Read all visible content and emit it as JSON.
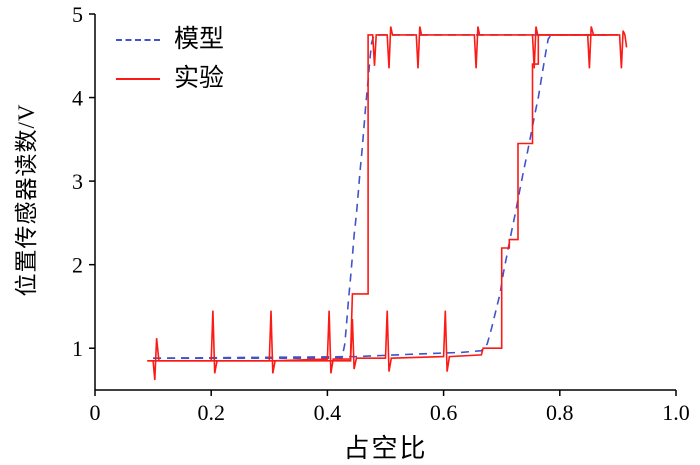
{
  "chart_data": {
    "type": "line",
    "title": "",
    "xlabel": "占空比",
    "ylabel": "位置传感器读数/V",
    "xlim": [
      0,
      1.0
    ],
    "ylim": [
      0.5,
      5
    ],
    "xticks": [
      0,
      0.2,
      0.4,
      0.6,
      0.8,
      1.0
    ],
    "xtick_labels": [
      "0",
      "0.2",
      "0.4",
      "0.6",
      "0.8",
      "1.0"
    ],
    "yticks": [
      1,
      2,
      3,
      4,
      5
    ],
    "ytick_labels": [
      "1",
      "2",
      "3",
      "4",
      "5"
    ],
    "grid": false,
    "axis_color": "#000000",
    "legend": {
      "position": "top-left",
      "items": [
        {
          "label": "模型",
          "style": "dashed",
          "color": "#4053c8"
        },
        {
          "label": "实验",
          "style": "solid",
          "color": "#fb1a14"
        }
      ]
    },
    "series": [
      {
        "name": "模型",
        "color": "#4053c8",
        "dash": "8,6",
        "width": 1.6,
        "branches": [
          [
            [
              0.1,
              0.88
            ],
            [
              0.45,
              0.9
            ],
            [
              0.55,
              0.93
            ],
            [
              0.63,
              0.95
            ],
            [
              0.665,
              0.97
            ],
            [
              0.675,
              1.05
            ],
            [
              0.683,
              1.25
            ],
            [
              0.69,
              1.45
            ],
            [
              0.697,
              1.65
            ],
            [
              0.703,
              1.9
            ],
            [
              0.71,
              2.15
            ],
            [
              0.717,
              2.4
            ],
            [
              0.723,
              2.6
            ],
            [
              0.73,
              2.85
            ],
            [
              0.737,
              3.1
            ],
            [
              0.743,
              3.3
            ],
            [
              0.75,
              3.55
            ],
            [
              0.757,
              3.8
            ],
            [
              0.763,
              4.0
            ],
            [
              0.77,
              4.3
            ],
            [
              0.776,
              4.55
            ],
            [
              0.78,
              4.7
            ],
            [
              0.785,
              4.75
            ],
            [
              0.88,
              4.75
            ]
          ],
          [
            [
              0.1,
              0.88
            ],
            [
              0.425,
              0.88
            ],
            [
              0.43,
              1.05
            ],
            [
              0.433,
              1.3
            ],
            [
              0.436,
              1.55
            ],
            [
              0.44,
              1.85
            ],
            [
              0.443,
              2.1
            ],
            [
              0.446,
              2.35
            ],
            [
              0.45,
              2.6
            ],
            [
              0.453,
              2.85
            ],
            [
              0.456,
              3.1
            ],
            [
              0.46,
              3.4
            ],
            [
              0.463,
              3.65
            ],
            [
              0.466,
              3.9
            ],
            [
              0.47,
              4.2
            ],
            [
              0.473,
              4.45
            ],
            [
              0.476,
              4.65
            ],
            [
              0.48,
              4.75
            ],
            [
              0.88,
              4.75
            ]
          ]
        ]
      },
      {
        "name": "实验",
        "color": "#fb1a14",
        "dash": null,
        "width": 1.6,
        "branches": [
          [
            [
              0.09,
              0.85
            ],
            [
              0.1,
              0.85
            ],
            [
              0.103,
              0.62
            ],
            [
              0.106,
              1.12
            ],
            [
              0.11,
              0.85
            ],
            [
              0.2,
              0.85
            ],
            [
              0.203,
              1.45
            ],
            [
              0.206,
              0.7
            ],
            [
              0.21,
              0.85
            ],
            [
              0.3,
              0.85
            ],
            [
              0.303,
              1.45
            ],
            [
              0.306,
              0.7
            ],
            [
              0.31,
              0.85
            ],
            [
              0.4,
              0.87
            ],
            [
              0.403,
              1.45
            ],
            [
              0.406,
              0.7
            ],
            [
              0.41,
              0.87
            ],
            [
              0.44,
              0.87
            ],
            [
              0.443,
              1.35
            ],
            [
              0.446,
              0.75
            ],
            [
              0.45,
              0.88
            ],
            [
              0.5,
              0.88
            ],
            [
              0.503,
              1.45
            ],
            [
              0.506,
              0.72
            ],
            [
              0.51,
              0.88
            ],
            [
              0.6,
              0.9
            ],
            [
              0.603,
              1.45
            ],
            [
              0.606,
              0.72
            ],
            [
              0.61,
              0.9
            ],
            [
              0.665,
              0.92
            ],
            [
              0.668,
              1.0
            ],
            [
              0.7,
              1.0
            ],
            [
              0.7,
              2.2
            ],
            [
              0.713,
              2.2
            ],
            [
              0.713,
              2.3
            ],
            [
              0.728,
              2.3
            ],
            [
              0.728,
              3.45
            ],
            [
              0.753,
              3.45
            ],
            [
              0.753,
              4.4
            ],
            [
              0.763,
              4.4
            ],
            [
              0.763,
              4.75
            ],
            [
              0.848,
              4.75
            ],
            [
              0.851,
              4.35
            ],
            [
              0.854,
              4.85
            ],
            [
              0.858,
              4.75
            ],
            [
              0.903,
              4.75
            ],
            [
              0.906,
              4.35
            ],
            [
              0.909,
              4.8
            ],
            [
              0.912,
              4.75
            ],
            [
              0.915,
              4.6
            ]
          ],
          [
            [
              0.09,
              0.85
            ],
            [
              0.44,
              0.85
            ],
            [
              0.44,
              0.92
            ],
            [
              0.443,
              1.65
            ],
            [
              0.47,
              1.65
            ],
            [
              0.47,
              4.75
            ],
            [
              0.478,
              4.75
            ],
            [
              0.481,
              4.38
            ],
            [
              0.484,
              4.75
            ],
            [
              0.503,
              4.75
            ],
            [
              0.506,
              4.35
            ],
            [
              0.509,
              4.85
            ],
            [
              0.512,
              4.75
            ],
            [
              0.553,
              4.75
            ],
            [
              0.556,
              4.35
            ],
            [
              0.559,
              4.85
            ],
            [
              0.562,
              4.75
            ],
            [
              0.653,
              4.75
            ],
            [
              0.656,
              4.35
            ],
            [
              0.659,
              4.85
            ],
            [
              0.662,
              4.75
            ],
            [
              0.753,
              4.75
            ],
            [
              0.756,
              4.35
            ],
            [
              0.759,
              4.85
            ],
            [
              0.762,
              4.75
            ],
            [
              0.9,
              4.75
            ]
          ]
        ]
      }
    ]
  }
}
